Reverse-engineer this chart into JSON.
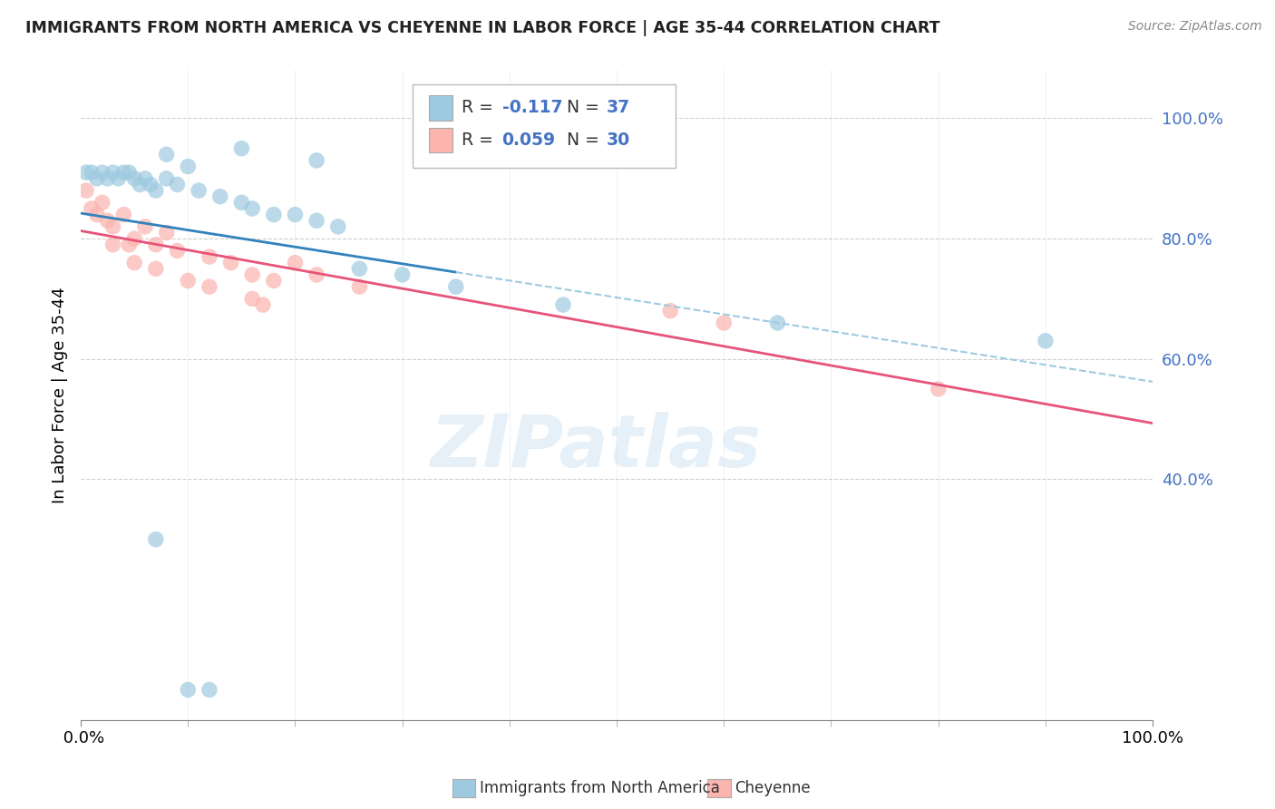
{
  "title": "IMMIGRANTS FROM NORTH AMERICA VS CHEYENNE IN LABOR FORCE | AGE 35-44 CORRELATION CHART",
  "source": "Source: ZipAtlas.com",
  "ylabel": "In Labor Force | Age 35-44",
  "legend_label1": "Immigrants from North America",
  "legend_label2": "Cheyenne",
  "R1": -0.117,
  "N1": 37,
  "R2": 0.059,
  "N2": 30,
  "blue_color": "#9ecae1",
  "pink_color": "#fbb4ae",
  "blue_line_color": "#3182bd",
  "pink_line_color": "#e6547a",
  "dashed_color": "#9ecae1",
  "blue_scatter": [
    [
      0.5,
      91
    ],
    [
      1.0,
      91
    ],
    [
      1.5,
      90
    ],
    [
      2.0,
      91
    ],
    [
      2.5,
      90
    ],
    [
      3.0,
      91
    ],
    [
      3.5,
      90
    ],
    [
      4.0,
      91
    ],
    [
      4.5,
      91
    ],
    [
      5.0,
      90
    ],
    [
      5.5,
      89
    ],
    [
      6.0,
      90
    ],
    [
      6.5,
      89
    ],
    [
      7.0,
      88
    ],
    [
      8.0,
      90
    ],
    [
      9.0,
      89
    ],
    [
      11.0,
      88
    ],
    [
      13.0,
      87
    ],
    [
      15.0,
      86
    ],
    [
      16.0,
      85
    ],
    [
      18.0,
      84
    ],
    [
      20.0,
      84
    ],
    [
      22.0,
      83
    ],
    [
      24.0,
      82
    ],
    [
      26.0,
      75
    ],
    [
      30.0,
      74
    ],
    [
      35.0,
      72
    ],
    [
      15.0,
      95
    ],
    [
      22.0,
      93
    ],
    [
      8.0,
      94
    ],
    [
      10.0,
      92
    ],
    [
      7.0,
      30
    ],
    [
      10.0,
      5
    ],
    [
      12.0,
      5
    ],
    [
      45.0,
      69
    ],
    [
      65.0,
      66
    ],
    [
      90.0,
      63
    ]
  ],
  "pink_scatter": [
    [
      0.5,
      88
    ],
    [
      1.0,
      85
    ],
    [
      1.5,
      84
    ],
    [
      2.0,
      86
    ],
    [
      2.5,
      83
    ],
    [
      3.0,
      82
    ],
    [
      4.0,
      84
    ],
    [
      5.0,
      80
    ],
    [
      6.0,
      82
    ],
    [
      7.0,
      79
    ],
    [
      8.0,
      81
    ],
    [
      9.0,
      78
    ],
    [
      12.0,
      77
    ],
    [
      14.0,
      76
    ],
    [
      16.0,
      74
    ],
    [
      18.0,
      73
    ],
    [
      20.0,
      76
    ],
    [
      22.0,
      74
    ],
    [
      26.0,
      72
    ],
    [
      5.0,
      76
    ],
    [
      7.0,
      75
    ],
    [
      10.0,
      73
    ],
    [
      12.0,
      72
    ],
    [
      3.0,
      79
    ],
    [
      4.5,
      79
    ],
    [
      16.0,
      70
    ],
    [
      17.0,
      69
    ],
    [
      55.0,
      68
    ],
    [
      60.0,
      66
    ],
    [
      80.0,
      55
    ]
  ],
  "xlim": [
    0,
    100
  ],
  "ylim": [
    0,
    108
  ],
  "ytick_vals": [
    40,
    60,
    80,
    100
  ],
  "background_color": "#ffffff",
  "grid_color": "#d0d0d0",
  "watermark": "ZIPatlas"
}
